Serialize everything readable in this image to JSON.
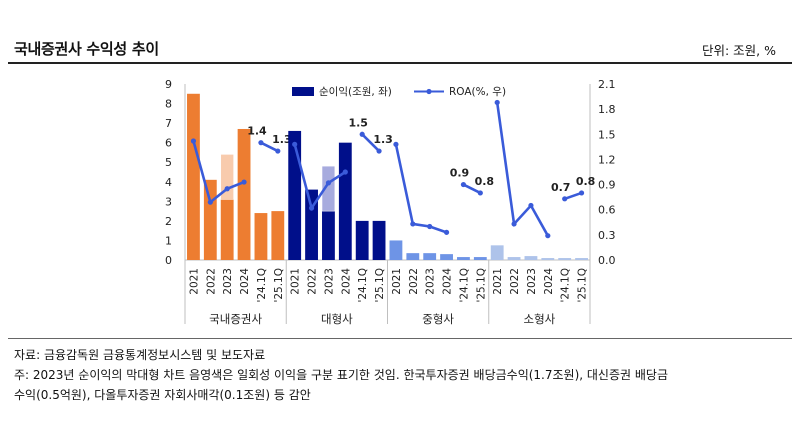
{
  "title": "국내증권사 수익성 추이",
  "unit_label": "단위: 조원, %",
  "source": "자료: 금융감독원 금융통계정보시스템 및 보도자료",
  "note_line1": "주: 2023년 순이익의 막대형 차트 음영색은 일회성 이익을 구분 표기한 것임. 한국투자증권 배당금수익(1.7조원), 대신증권 배당금",
  "note_line2": "수익(0.5억원), 다올투자증권 자회사매각(0.1조원) 등 감안",
  "chart_data": {
    "type": "bar",
    "y_left": {
      "min": 0,
      "max": 9,
      "ticks": [
        "0",
        "1",
        "2",
        "3",
        "4",
        "5",
        "6",
        "7",
        "8",
        "9"
      ]
    },
    "y_right": {
      "min": 0,
      "max": 2.1,
      "ticks": [
        "0.0",
        "0.3",
        "0.6",
        "0.9",
        "1.2",
        "1.5",
        "1.8",
        "2.1"
      ]
    },
    "legend": {
      "bar": "순이익(조원, 좌)",
      "line": "ROA(%, 우)",
      "placement": "top"
    },
    "category_labels": [
      "2021",
      "2022",
      "2023",
      "2024",
      "'24.1Q",
      "'25.1Q"
    ],
    "colors": {
      "국내증권사": {
        "bar": "#ED7D31",
        "light": "#F8CBAD"
      },
      "대형사": {
        "bar": "#000F8A",
        "light": "#A7ABDE"
      },
      "중형사": {
        "bar": "#6E94E6",
        "light": "#B7C9F2"
      },
      "소형사": {
        "bar": "#AEC3EA",
        "light": "#DCE6F8"
      },
      "line": "#3A5BD9"
    },
    "groups": [
      {
        "name": "국내증권사",
        "net_income": [
          8.5,
          4.1,
          3.1,
          6.7,
          2.4,
          2.5
        ],
        "one_off": [
          0,
          0,
          2.3,
          0,
          0,
          0
        ],
        "roa": [
          1.42,
          0.69,
          0.85,
          0.93,
          1.4,
          1.3
        ],
        "roa_labels": [
          "",
          "",
          "",
          "",
          "1.4",
          "1.3"
        ]
      },
      {
        "name": "대형사",
        "net_income": [
          6.6,
          3.6,
          2.5,
          6.0,
          2.0,
          2.0
        ],
        "one_off": [
          0,
          0,
          2.3,
          0,
          0,
          0
        ],
        "roa": [
          1.38,
          0.62,
          0.92,
          1.05,
          1.5,
          1.3
        ],
        "roa_labels": [
          "",
          "",
          "",
          "",
          "1.5",
          "1.3"
        ]
      },
      {
        "name": "중형사",
        "net_income": [
          1.0,
          0.35,
          0.35,
          0.3,
          0.15,
          0.15
        ],
        "one_off": [
          0,
          0,
          0,
          0,
          0,
          0
        ],
        "roa": [
          1.38,
          0.43,
          0.4,
          0.33,
          0.9,
          0.8
        ],
        "roa_labels": [
          "",
          "",
          "",
          "",
          "0.9",
          "0.8"
        ]
      },
      {
        "name": "소형사",
        "net_income": [
          0.75,
          0.15,
          0.2,
          0.1,
          0.1,
          0.1
        ],
        "one_off": [
          0,
          0,
          0,
          0,
          0,
          0
        ],
        "roa": [
          1.88,
          0.43,
          0.65,
          0.29,
          0.73,
          0.8
        ],
        "roa_labels": [
          "",
          "",
          "",
          "",
          "0.7",
          "0.8"
        ]
      }
    ]
  }
}
